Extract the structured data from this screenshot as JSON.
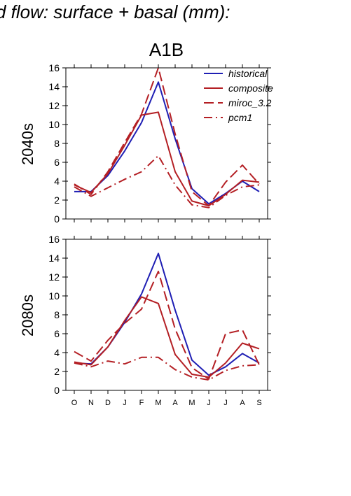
{
  "figure_title": "d flow: surface + basal (mm):",
  "scenario_title": "A1B",
  "colors": {
    "historical": "#1f1fb4",
    "future": "#b41f24",
    "axis": "#000000"
  },
  "chart_data": [
    {
      "type": "line",
      "panel_label": "2040s",
      "categories": [
        "O",
        "N",
        "D",
        "J",
        "F",
        "M",
        "A",
        "M",
        "J",
        "J",
        "A",
        "S"
      ],
      "ylim": [
        0,
        16
      ],
      "yticks": [
        "0",
        "2",
        "4",
        "6",
        "8",
        "10",
        "12",
        "14",
        "16"
      ],
      "grid": false,
      "legend_position": "top-right",
      "series": [
        {
          "name": "historical",
          "dash": "solid",
          "values": [
            2.9,
            2.9,
            4.6,
            7.2,
            10.2,
            14.5,
            8.5,
            3.2,
            1.6,
            2.7,
            4.0,
            2.9
          ]
        },
        {
          "name": "composite",
          "dash": "solid",
          "values": [
            3.6,
            2.8,
            4.8,
            7.8,
            11.0,
            11.3,
            5.0,
            1.9,
            1.4,
            2.6,
            4.1,
            3.9
          ]
        },
        {
          "name": "miroc_3.2",
          "dash": "longdash",
          "values": [
            3.7,
            2.6,
            5.0,
            8.1,
            11.1,
            16.0,
            9.0,
            2.9,
            1.4,
            3.9,
            5.7,
            3.7
          ]
        },
        {
          "name": "pcm1",
          "dash": "dashdot",
          "values": [
            3.4,
            2.4,
            3.3,
            4.2,
            5.0,
            6.7,
            3.6,
            1.5,
            1.2,
            2.5,
            3.4,
            3.6
          ]
        }
      ]
    },
    {
      "type": "line",
      "panel_label": "2080s",
      "categories": [
        "O",
        "N",
        "D",
        "J",
        "F",
        "M",
        "A",
        "M",
        "J",
        "J",
        "A",
        "S"
      ],
      "ylim": [
        0,
        16
      ],
      "yticks": [
        "0",
        "2",
        "4",
        "6",
        "8",
        "10",
        "12",
        "14",
        "16"
      ],
      "grid": false,
      "series": [
        {
          "name": "historical",
          "dash": "solid",
          "values": [
            2.9,
            2.8,
            4.6,
            7.2,
            10.2,
            14.5,
            8.5,
            3.2,
            1.6,
            2.5,
            3.9,
            2.9
          ]
        },
        {
          "name": "composite",
          "dash": "solid",
          "values": [
            3.0,
            2.7,
            4.6,
            7.4,
            9.9,
            9.2,
            3.8,
            1.7,
            1.4,
            2.9,
            5.0,
            4.4
          ]
        },
        {
          "name": "miroc_3.2",
          "dash": "longdash",
          "values": [
            4.1,
            3.1,
            5.3,
            7.1,
            8.6,
            12.6,
            6.5,
            2.4,
            1.2,
            6.0,
            6.4,
            2.7
          ]
        },
        {
          "name": "pcm1",
          "dash": "dashdot",
          "values": [
            2.9,
            2.5,
            3.1,
            2.8,
            3.5,
            3.5,
            2.2,
            1.4,
            1.1,
            2.1,
            2.6,
            2.7
          ]
        }
      ]
    }
  ]
}
